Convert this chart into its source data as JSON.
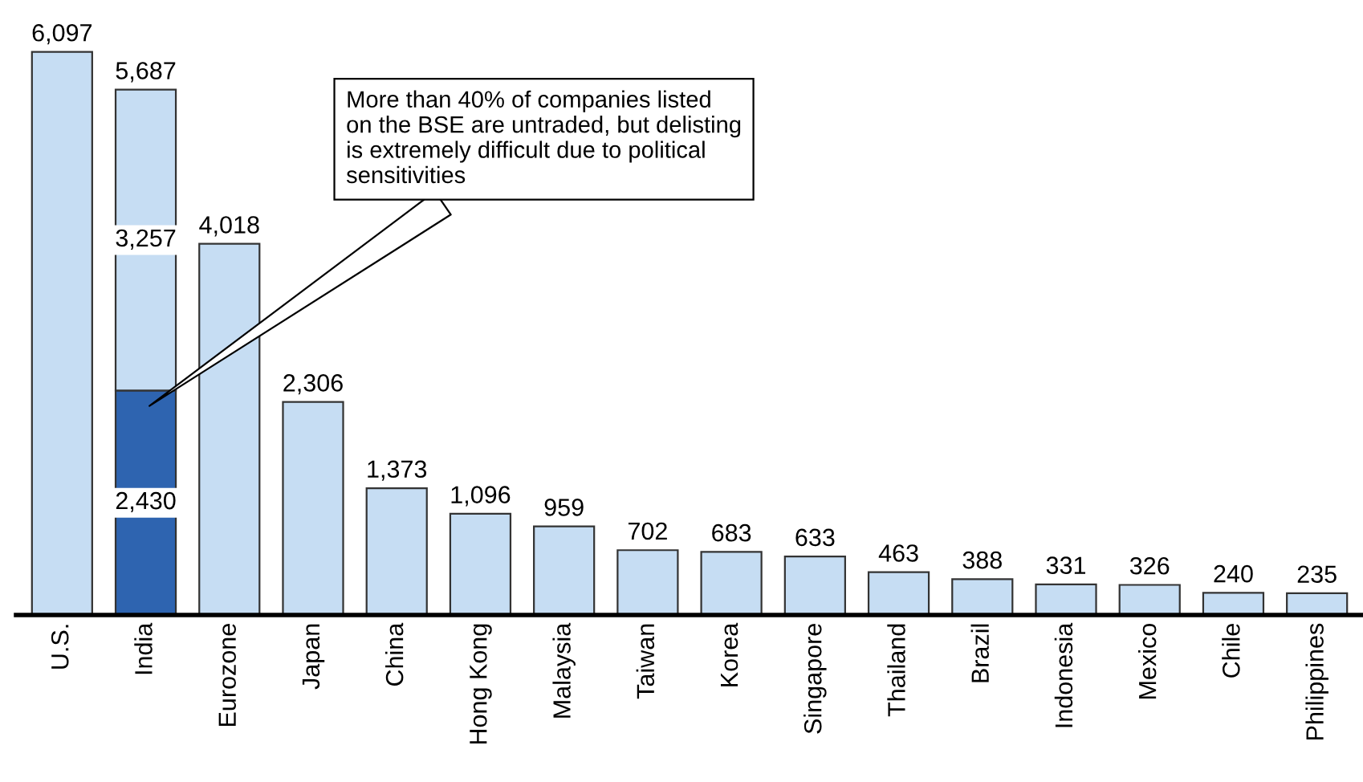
{
  "chart_data": {
    "type": "bar",
    "stacked": true,
    "categories": [
      "U.S.",
      "India",
      "Eurozone",
      "Japan",
      "China",
      "Hong Kong",
      "Malaysia",
      "Taiwan",
      "Korea",
      "Singapore",
      "Thailand",
      "Brazil",
      "Indonesia",
      "Mexico",
      "Chile",
      "Philippines"
    ],
    "series": [
      {
        "color": "#2e64b0",
        "values": [
          null,
          2430,
          null,
          null,
          null,
          null,
          null,
          null,
          null,
          null,
          null,
          null,
          null,
          null,
          null,
          null
        ],
        "value_labels": [
          null,
          "2,430",
          null,
          null,
          null,
          null,
          null,
          null,
          null,
          null,
          null,
          null,
          null,
          null,
          null,
          null
        ]
      },
      {
        "color": "#c6ddf3",
        "values": [
          6097,
          3257,
          4018,
          2306,
          1373,
          1096,
          959,
          702,
          683,
          633,
          463,
          388,
          331,
          326,
          240,
          235
        ],
        "value_labels": [
          "6,097",
          "3,257",
          "4,018",
          "2,306",
          "1,373",
          "1,096",
          "959",
          "702",
          "683",
          "633",
          "463",
          "388",
          "331",
          "326",
          "240",
          "235"
        ]
      }
    ],
    "totals": [
      null,
      "5,687",
      null,
      null,
      null,
      null,
      null,
      null,
      null,
      null,
      null,
      null,
      null,
      null,
      null,
      null
    ],
    "tick_labels": "x",
    "grid": false,
    "annotations": [
      "More than 40% of companies listed\non the BSE are untraded, but delisting\nis extremely difficult due to political\nsensitivities"
    ]
  }
}
